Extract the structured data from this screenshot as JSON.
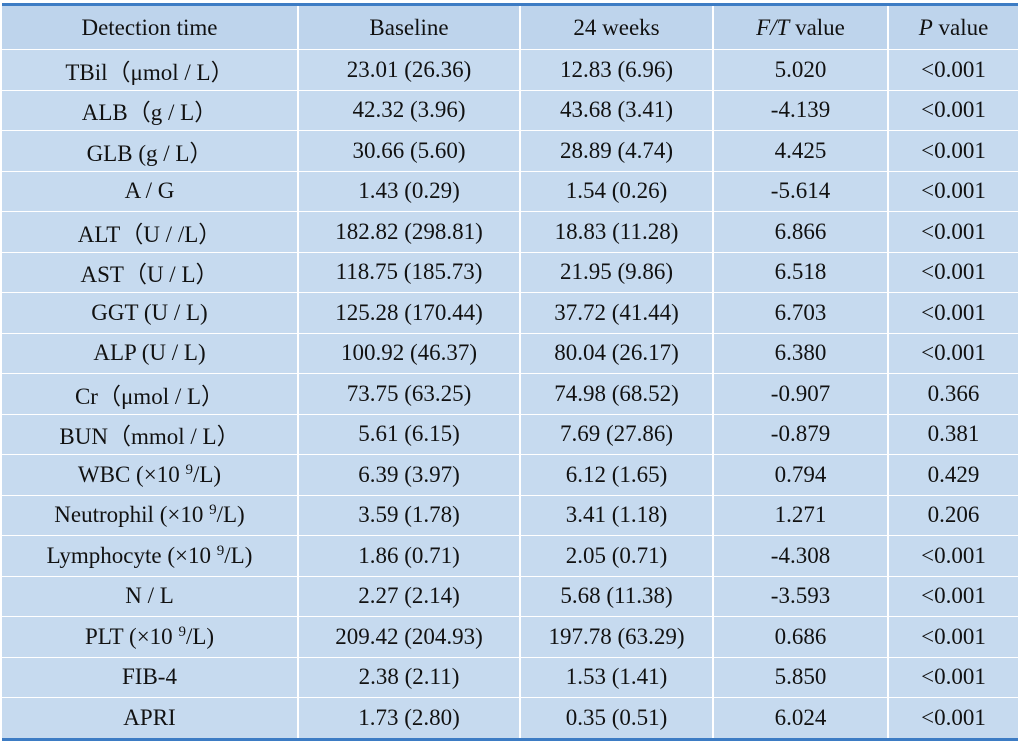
{
  "table": {
    "header": [
      "Detection time",
      "Baseline",
      "24 weeks",
      [
        {
          "text": "F/T",
          "style": "italic"
        },
        " value"
      ],
      [
        {
          "text": "P",
          "style": "italic"
        },
        " value"
      ]
    ],
    "rows": [
      [
        "TBil（μmol / L）",
        "23.01 (26.36)",
        "12.83 (6.96)",
        "5.020",
        "<0.001"
      ],
      [
        "ALB（g / L）",
        "42.32 (3.96)",
        "43.68 (3.41)",
        "-4.139",
        "<0.001"
      ],
      [
        "GLB (g / L）",
        "30.66 (5.60)",
        "28.89 (4.74)",
        "4.425",
        "<0.001"
      ],
      [
        "A / G",
        "1.43 (0.29)",
        "1.54 (0.26)",
        "-5.614",
        "<0.001"
      ],
      [
        "ALT（U / /L）",
        "182.82 (298.81)",
        "18.83 (11.28)",
        "6.866",
        "<0.001"
      ],
      [
        "AST（U / L）",
        "118.75 (185.73)",
        "21.95 (9.86)",
        "6.518",
        "<0.001"
      ],
      [
        "GGT (U / L)",
        "125.28 (170.44)",
        "37.72 (41.44)",
        "6.703",
        "<0.001"
      ],
      [
        "ALP (U / L)",
        "100.92 (46.37)",
        "80.04 (26.17)",
        "6.380",
        "<0.001"
      ],
      [
        "Cr（μmol / L）",
        "73.75 (63.25)",
        "74.98 (68.52)",
        "-0.907",
        "0.366"
      ],
      [
        "BUN（mmol / L）",
        "5.61 (6.15)",
        "7.69 (27.86)",
        "-0.879",
        "0.381"
      ],
      [
        [
          "WBC (×10 ",
          {
            "text": "9",
            "style": "sup"
          },
          "/L)"
        ],
        "6.39 (3.97)",
        "6.12 (1.65)",
        "0.794",
        "0.429"
      ],
      [
        [
          "Neutrophil (×10 ",
          {
            "text": "9",
            "style": "sup"
          },
          "/L)"
        ],
        "3.59 (1.78)",
        "3.41 (1.18)",
        "1.271",
        "0.206"
      ],
      [
        [
          "Lymphocyte (×10 ",
          {
            "text": "9",
            "style": "sup"
          },
          "/L)"
        ],
        "1.86 (0.71)",
        "2.05 (0.71)",
        "-4.308",
        "<0.001"
      ],
      [
        "N / L",
        "2.27 (2.14)",
        "5.68 (11.38)",
        "-3.593",
        "<0.001"
      ],
      [
        [
          "PLT (×10 ",
          {
            "text": "9",
            "style": "sup"
          },
          "/L)"
        ],
        "209.42 (204.93)",
        "197.78 (63.29)",
        "0.686",
        "<0.001"
      ],
      [
        "FIB-4",
        "2.38 (2.11)",
        "1.53 (1.41)",
        "5.850",
        "<0.001"
      ],
      [
        "APRI",
        "1.73 (2.80)",
        "0.35 (0.51)",
        "6.024",
        "<0.001"
      ]
    ]
  }
}
